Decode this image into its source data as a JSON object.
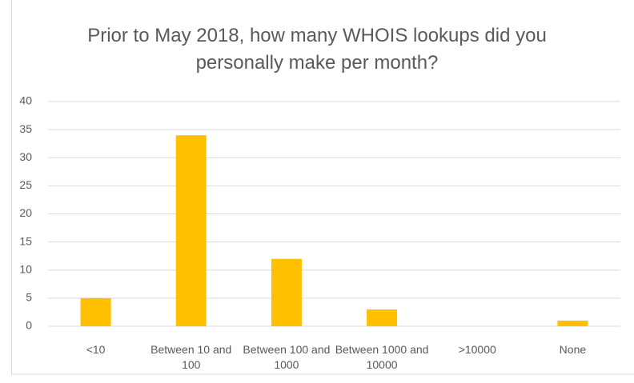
{
  "chart_data": {
    "type": "bar",
    "title": "Prior to May 2018, how many WHOIS lookups did you personally make per month?",
    "categories": [
      "<10",
      "Between 10 and 100",
      "Between 100 and 1000",
      "Between 1000 and 10000",
      ">10000",
      "None"
    ],
    "values": [
      5,
      34,
      12,
      3,
      0,
      1
    ],
    "color": "#ffc000",
    "ylim": [
      0,
      40
    ],
    "yticks": [
      0,
      5,
      10,
      15,
      20,
      25,
      30,
      35,
      40
    ],
    "grid": true
  }
}
